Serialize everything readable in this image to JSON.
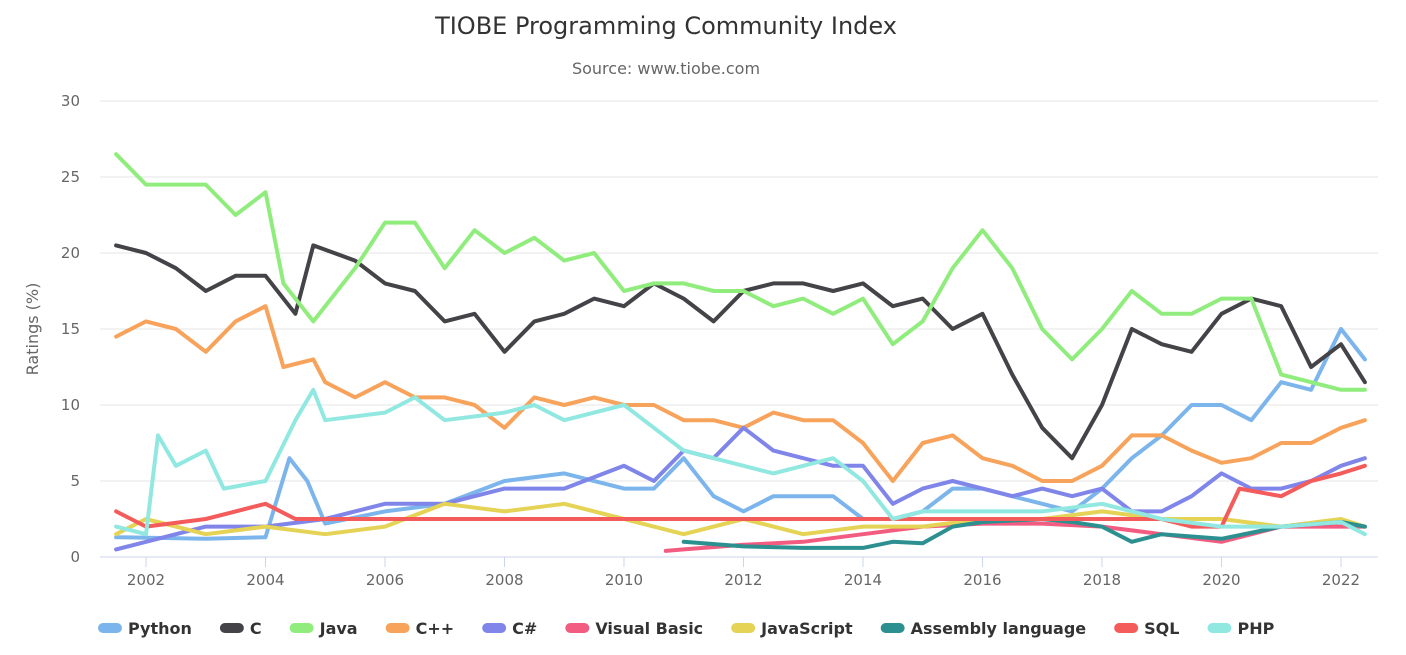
{
  "chart_data": {
    "type": "line",
    "title": "TIOBE Programming Community Index",
    "subtitle": "Source: www.tiobe.com",
    "xlabel": "",
    "ylabel": "Ratings (%)",
    "xlim": [
      2001.23,
      2022.62
    ],
    "ylim": [
      0,
      30
    ],
    "x_ticks": [
      2002,
      2004,
      2006,
      2008,
      2010,
      2012,
      2014,
      2016,
      2018,
      2020,
      2022
    ],
    "y_ticks": [
      0,
      5,
      10,
      15,
      20,
      25,
      30
    ],
    "grid": "horizontal",
    "legend_position": "bottom",
    "series": [
      {
        "name": "Python",
        "color": "#7cb5ec",
        "points": [
          [
            2001.5,
            1.3
          ],
          [
            2003,
            1.2
          ],
          [
            2004,
            1.3
          ],
          [
            2004.4,
            6.5
          ],
          [
            2004.7,
            5
          ],
          [
            2005,
            2.2
          ],
          [
            2006,
            3
          ],
          [
            2007,
            3.5
          ],
          [
            2008,
            5
          ],
          [
            2009,
            5.5
          ],
          [
            2010,
            4.5
          ],
          [
            2010.5,
            4.5
          ],
          [
            2011,
            6.5
          ],
          [
            2011.5,
            4
          ],
          [
            2012,
            3
          ],
          [
            2012.5,
            4
          ],
          [
            2013,
            4
          ],
          [
            2013.5,
            4
          ],
          [
            2014,
            2.5
          ],
          [
            2014.5,
            2.5
          ],
          [
            2015,
            3
          ],
          [
            2015.5,
            4.5
          ],
          [
            2016,
            4.5
          ],
          [
            2016.5,
            4
          ],
          [
            2017,
            3.5
          ],
          [
            2017.5,
            3
          ],
          [
            2018,
            4.5
          ],
          [
            2018.5,
            6.5
          ],
          [
            2019,
            8
          ],
          [
            2019.5,
            10
          ],
          [
            2020,
            10
          ],
          [
            2020.5,
            9
          ],
          [
            2021,
            11.5
          ],
          [
            2021.5,
            11
          ],
          [
            2022,
            15
          ],
          [
            2022.4,
            13
          ]
        ]
      },
      {
        "name": "C",
        "color": "#434348",
        "points": [
          [
            2001.5,
            20.5
          ],
          [
            2002,
            20
          ],
          [
            2002.5,
            19
          ],
          [
            2003,
            17.5
          ],
          [
            2003.5,
            18.5
          ],
          [
            2004,
            18.5
          ],
          [
            2004.5,
            16
          ],
          [
            2004.8,
            20.5
          ],
          [
            2005.5,
            19.5
          ],
          [
            2006,
            18
          ],
          [
            2006.5,
            17.5
          ],
          [
            2007,
            15.5
          ],
          [
            2007.5,
            16
          ],
          [
            2008,
            13.5
          ],
          [
            2008.5,
            15.5
          ],
          [
            2009,
            16
          ],
          [
            2009.5,
            17
          ],
          [
            2010,
            16.5
          ],
          [
            2010.5,
            18
          ],
          [
            2011,
            17
          ],
          [
            2011.5,
            15.5
          ],
          [
            2012,
            17.5
          ],
          [
            2012.5,
            18
          ],
          [
            2013,
            18
          ],
          [
            2013.5,
            17.5
          ],
          [
            2014,
            18
          ],
          [
            2014.5,
            16.5
          ],
          [
            2015,
            17
          ],
          [
            2015.5,
            15
          ],
          [
            2016,
            16
          ],
          [
            2016.5,
            12
          ],
          [
            2017,
            8.5
          ],
          [
            2017.5,
            6.5
          ],
          [
            2018,
            10
          ],
          [
            2018.5,
            15
          ],
          [
            2019,
            14
          ],
          [
            2019.5,
            13.5
          ],
          [
            2020,
            16
          ],
          [
            2020.5,
            17
          ],
          [
            2021,
            16.5
          ],
          [
            2021.5,
            12.5
          ],
          [
            2022,
            14
          ],
          [
            2022.4,
            11.5
          ]
        ]
      },
      {
        "name": "Java",
        "color": "#90ed7d",
        "points": [
          [
            2001.5,
            26.5
          ],
          [
            2002,
            24.5
          ],
          [
            2003,
            24.5
          ],
          [
            2003.5,
            22.5
          ],
          [
            2004,
            24
          ],
          [
            2004.3,
            18
          ],
          [
            2004.8,
            15.5
          ],
          [
            2005.5,
            19
          ],
          [
            2006,
            22
          ],
          [
            2006.5,
            22
          ],
          [
            2007,
            19
          ],
          [
            2007.5,
            21.5
          ],
          [
            2008,
            20
          ],
          [
            2008.5,
            21
          ],
          [
            2009,
            19.5
          ],
          [
            2009.5,
            20
          ],
          [
            2010,
            17.5
          ],
          [
            2010.5,
            18
          ],
          [
            2011,
            18
          ],
          [
            2011.5,
            17.5
          ],
          [
            2012,
            17.5
          ],
          [
            2012.5,
            16.5
          ],
          [
            2013,
            17
          ],
          [
            2013.5,
            16
          ],
          [
            2014,
            17
          ],
          [
            2014.5,
            14
          ],
          [
            2015,
            15.5
          ],
          [
            2015.5,
            19
          ],
          [
            2016,
            21.5
          ],
          [
            2016.5,
            19
          ],
          [
            2017,
            15
          ],
          [
            2017.5,
            13
          ],
          [
            2018,
            15
          ],
          [
            2018.5,
            17.5
          ],
          [
            2019,
            16
          ],
          [
            2019.5,
            16
          ],
          [
            2020,
            17
          ],
          [
            2020.5,
            17
          ],
          [
            2021,
            12
          ],
          [
            2021.5,
            11.5
          ],
          [
            2022,
            11
          ],
          [
            2022.4,
            11
          ]
        ]
      },
      {
        "name": "C++",
        "color": "#f7a35c",
        "points": [
          [
            2001.5,
            14.5
          ],
          [
            2002,
            15.5
          ],
          [
            2002.5,
            15
          ],
          [
            2003,
            13.5
          ],
          [
            2003.5,
            15.5
          ],
          [
            2004,
            16.5
          ],
          [
            2004.3,
            12.5
          ],
          [
            2004.8,
            13
          ],
          [
            2005,
            11.5
          ],
          [
            2005.5,
            10.5
          ],
          [
            2006,
            11.5
          ],
          [
            2006.5,
            10.5
          ],
          [
            2007,
            10.5
          ],
          [
            2007.5,
            10
          ],
          [
            2008,
            8.5
          ],
          [
            2008.5,
            10.5
          ],
          [
            2009,
            10
          ],
          [
            2009.5,
            10.5
          ],
          [
            2010,
            10
          ],
          [
            2010.5,
            10
          ],
          [
            2011,
            9
          ],
          [
            2011.5,
            9
          ],
          [
            2012,
            8.5
          ],
          [
            2012.5,
            9.5
          ],
          [
            2013,
            9
          ],
          [
            2013.5,
            9
          ],
          [
            2014,
            7.5
          ],
          [
            2014.5,
            5
          ],
          [
            2015,
            7.5
          ],
          [
            2015.5,
            8
          ],
          [
            2016,
            6.5
          ],
          [
            2016.5,
            6
          ],
          [
            2017,
            5
          ],
          [
            2017.5,
            5
          ],
          [
            2018,
            6
          ],
          [
            2018.5,
            8
          ],
          [
            2019,
            8
          ],
          [
            2019.5,
            7
          ],
          [
            2020,
            6.2
          ],
          [
            2020.5,
            6.5
          ],
          [
            2021,
            7.5
          ],
          [
            2021.5,
            7.5
          ],
          [
            2022,
            8.5
          ],
          [
            2022.4,
            9
          ]
        ]
      },
      {
        "name": "C#",
        "color": "#8085e9",
        "points": [
          [
            2001.5,
            0.5
          ],
          [
            2002,
            1
          ],
          [
            2003,
            2
          ],
          [
            2004,
            2
          ],
          [
            2005,
            2.5
          ],
          [
            2006,
            3.5
          ],
          [
            2007,
            3.5
          ],
          [
            2008,
            4.5
          ],
          [
            2009,
            4.5
          ],
          [
            2010,
            6
          ],
          [
            2010.5,
            5
          ],
          [
            2011,
            7
          ],
          [
            2011.5,
            6.5
          ],
          [
            2012,
            8.5
          ],
          [
            2012.5,
            7
          ],
          [
            2013,
            6.5
          ],
          [
            2013.5,
            6
          ],
          [
            2014,
            6
          ],
          [
            2014.5,
            3.5
          ],
          [
            2015,
            4.5
          ],
          [
            2015.5,
            5
          ],
          [
            2016,
            4.5
          ],
          [
            2016.5,
            4
          ],
          [
            2017,
            4.5
          ],
          [
            2017.5,
            4
          ],
          [
            2018,
            4.5
          ],
          [
            2018.5,
            3
          ],
          [
            2019,
            3
          ],
          [
            2019.5,
            4
          ],
          [
            2020,
            5.5
          ],
          [
            2020.5,
            4.5
          ],
          [
            2021,
            4.5
          ],
          [
            2021.5,
            5
          ],
          [
            2022,
            6
          ],
          [
            2022.4,
            6.5
          ]
        ]
      },
      {
        "name": "Visual Basic",
        "color": "#f15c80",
        "points": [
          [
            2010.7,
            0.4
          ],
          [
            2011,
            0.5
          ],
          [
            2012,
            0.8
          ],
          [
            2013,
            1
          ],
          [
            2014,
            1.5
          ],
          [
            2015,
            2
          ],
          [
            2016,
            2.2
          ],
          [
            2017,
            2.2
          ],
          [
            2018,
            2
          ],
          [
            2019,
            1.5
          ],
          [
            2020,
            1
          ],
          [
            2021,
            2
          ],
          [
            2022,
            2
          ],
          [
            2022.4,
            2
          ]
        ]
      },
      {
        "name": "JavaScript",
        "color": "#e4d354",
        "points": [
          [
            2001.5,
            1.5
          ],
          [
            2002,
            2.5
          ],
          [
            2003,
            1.5
          ],
          [
            2004,
            2
          ],
          [
            2005,
            1.5
          ],
          [
            2006,
            2
          ],
          [
            2007,
            3.5
          ],
          [
            2008,
            3
          ],
          [
            2009,
            3.5
          ],
          [
            2010,
            2.5
          ],
          [
            2011,
            1.5
          ],
          [
            2012,
            2.5
          ],
          [
            2013,
            1.5
          ],
          [
            2014,
            2
          ],
          [
            2015,
            2
          ],
          [
            2016,
            2.5
          ],
          [
            2017,
            2.5
          ],
          [
            2018,
            3
          ],
          [
            2019,
            2.5
          ],
          [
            2020,
            2.5
          ],
          [
            2021,
            2
          ],
          [
            2022,
            2.5
          ],
          [
            2022.4,
            2
          ]
        ]
      },
      {
        "name": "Assembly language",
        "color": "#2b908f",
        "points": [
          [
            2011,
            1
          ],
          [
            2012,
            0.7
          ],
          [
            2013,
            0.6
          ],
          [
            2014,
            0.6
          ],
          [
            2014.5,
            1
          ],
          [
            2015,
            0.9
          ],
          [
            2015.5,
            2
          ],
          [
            2016,
            2.3
          ],
          [
            2017,
            2.5
          ],
          [
            2017.5,
            2.3
          ],
          [
            2018,
            2
          ],
          [
            2018.5,
            1
          ],
          [
            2019,
            1.5
          ],
          [
            2020,
            1.2
          ],
          [
            2021,
            2
          ],
          [
            2022,
            2.3
          ],
          [
            2022.4,
            2
          ]
        ]
      },
      {
        "name": "SQL",
        "color": "#f45b5b",
        "points": [
          [
            2001.5,
            3
          ],
          [
            2002,
            2
          ],
          [
            2003,
            2.5
          ],
          [
            2003.5,
            3
          ],
          [
            2004,
            3.5
          ],
          [
            2004.5,
            2.5
          ],
          [
            2017.7,
            2.5
          ],
          [
            2018,
            2.5
          ],
          [
            2019,
            2.5
          ],
          [
            2019.5,
            2
          ],
          [
            2020,
            2
          ],
          [
            2020.3,
            4.5
          ],
          [
            2021,
            4
          ],
          [
            2021.5,
            5
          ],
          [
            2022,
            5.5
          ],
          [
            2022.4,
            6
          ]
        ]
      },
      {
        "name": "PHP",
        "color": "#91e8e1",
        "points": [
          [
            2001.5,
            2
          ],
          [
            2002,
            1.5
          ],
          [
            2002.2,
            8
          ],
          [
            2002.5,
            6
          ],
          [
            2003,
            7
          ],
          [
            2003.3,
            4.5
          ],
          [
            2004,
            5
          ],
          [
            2004.5,
            9
          ],
          [
            2004.8,
            11
          ],
          [
            2005,
            9
          ],
          [
            2006,
            9.5
          ],
          [
            2006.5,
            10.5
          ],
          [
            2007,
            9
          ],
          [
            2008,
            9.5
          ],
          [
            2008.5,
            10
          ],
          [
            2009,
            9
          ],
          [
            2010,
            10
          ],
          [
            2011,
            7
          ],
          [
            2011.5,
            6.5
          ],
          [
            2012,
            6
          ],
          [
            2012.5,
            5.5
          ],
          [
            2013,
            6
          ],
          [
            2013.5,
            6.5
          ],
          [
            2014,
            5
          ],
          [
            2014.5,
            2.5
          ],
          [
            2015,
            3
          ],
          [
            2016,
            3
          ],
          [
            2017,
            3
          ],
          [
            2018,
            3.5
          ],
          [
            2019,
            2.5
          ],
          [
            2020,
            2
          ],
          [
            2021,
            2
          ],
          [
            2022,
            2.3
          ],
          [
            2022.4,
            1.5
          ]
        ]
      }
    ]
  }
}
